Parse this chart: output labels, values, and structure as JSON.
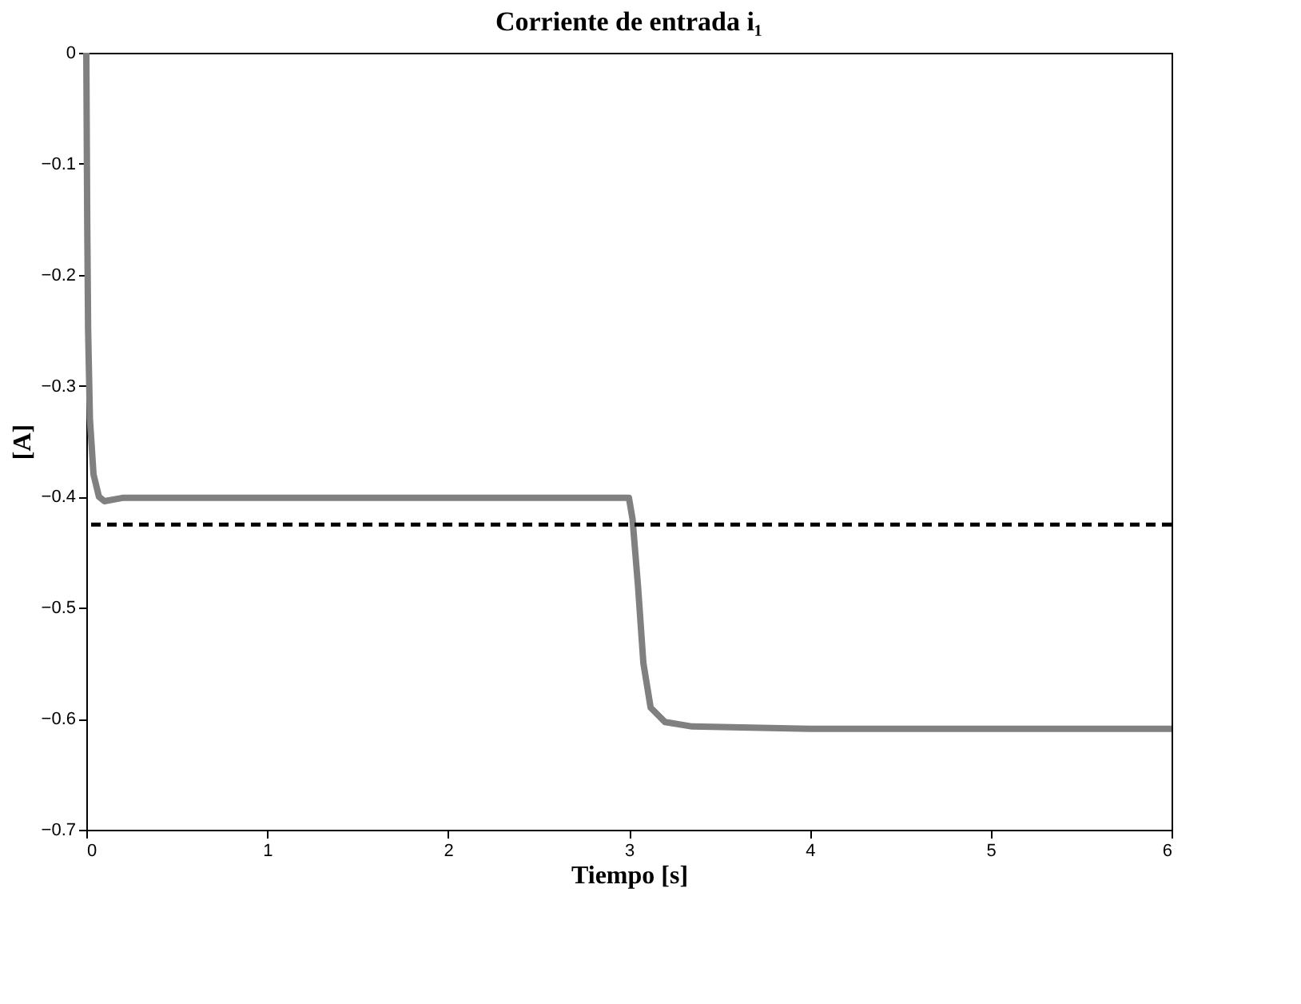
{
  "chart_data": {
    "type": "line",
    "title": "Corriente de entrada i₁",
    "xlabel": "Tiempo [s]",
    "ylabel": "[A]",
    "series": [
      {
        "color": "#808080",
        "x": [
          0,
          0.005,
          0.01,
          0.02,
          0.04,
          0.07,
          0.1,
          0.2,
          1,
          2,
          3,
          3.02,
          3.05,
          3.08,
          3.12,
          3.2,
          3.35,
          4,
          5,
          6
        ],
        "values": [
          0,
          -0.15,
          -0.25,
          -0.33,
          -0.38,
          -0.4,
          -0.404,
          -0.401,
          -0.401,
          -0.401,
          -0.401,
          -0.42,
          -0.48,
          -0.55,
          -0.59,
          -0.603,
          -0.607,
          -0.609,
          -0.609,
          -0.609
        ]
      }
    ],
    "ref_lines": [
      {
        "axis": "y",
        "value": -0.425,
        "color": "#000000",
        "line_style": "dashed"
      }
    ],
    "xlim": [
      0,
      6
    ],
    "xticks": [
      0,
      1,
      2,
      3,
      4,
      5,
      6
    ],
    "ylim": [
      -0.7,
      0
    ],
    "yticks": [
      -0.7,
      -0.6,
      -0.5,
      -0.4,
      -0.3,
      -0.2,
      -0.1,
      0
    ],
    "grid": false
  }
}
